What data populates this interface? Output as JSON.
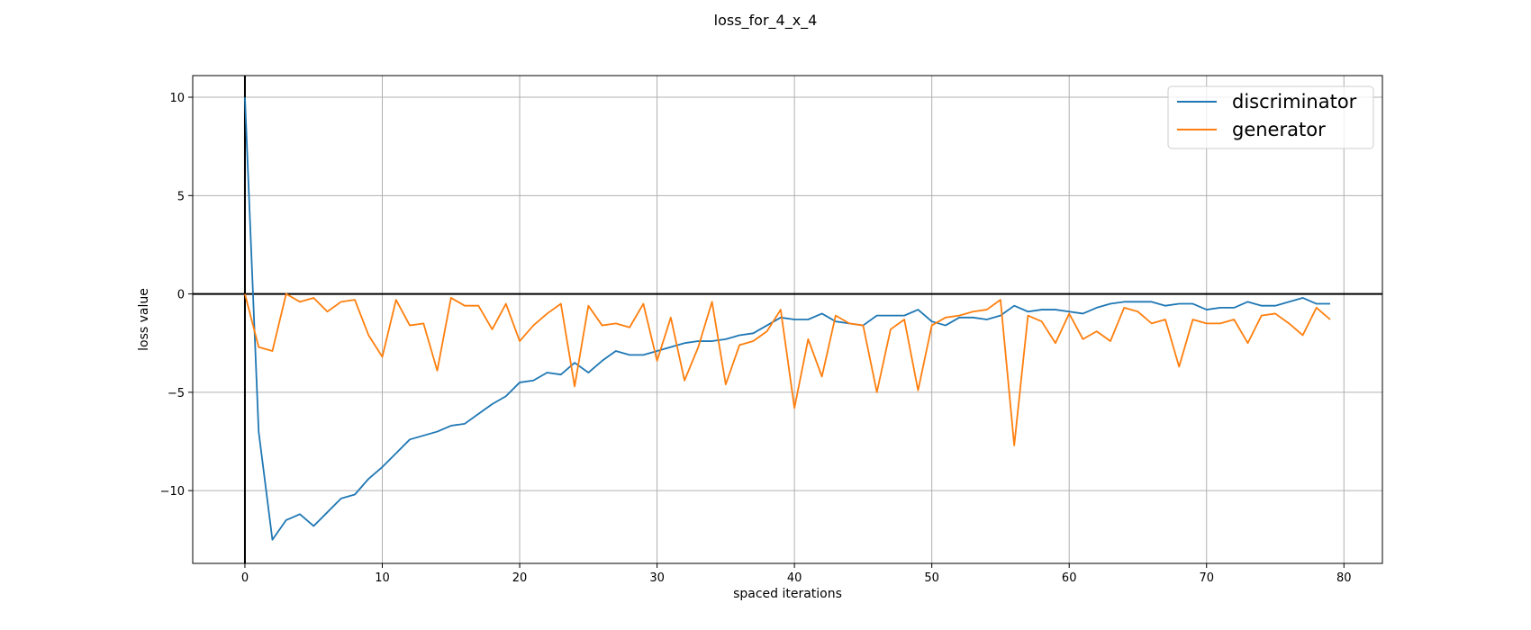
{
  "chart_data": {
    "type": "line",
    "title": "loss_for_4_x_4",
    "xlabel": "spaced iterations",
    "ylabel": "loss value",
    "xlim": [
      -3.8,
      82.8
    ],
    "ylim": [
      -13.7,
      11.1
    ],
    "xticks": [
      0,
      10,
      20,
      30,
      40,
      50,
      60,
      70,
      80
    ],
    "yticks": [
      10,
      5,
      0,
      -5,
      -10
    ],
    "ytick_labels": [
      "10",
      "5",
      "0",
      "−5",
      "−10"
    ],
    "grid": true,
    "legend_position": "top-right",
    "series": [
      {
        "name": "discriminator",
        "color": "#1f77b4",
        "values": [
          10.0,
          -7.0,
          -12.5,
          -11.5,
          -11.2,
          -11.8,
          -11.1,
          -10.4,
          -10.2,
          -9.4,
          -8.8,
          -8.1,
          -7.4,
          -7.2,
          -7.0,
          -6.7,
          -6.6,
          -6.1,
          -5.6,
          -5.2,
          -4.5,
          -4.4,
          -4.0,
          -4.1,
          -3.5,
          -4.0,
          -3.4,
          -2.9,
          -3.1,
          -3.1,
          -2.9,
          -2.7,
          -2.5,
          -2.4,
          -2.4,
          -2.3,
          -2.1,
          -2.0,
          -1.6,
          -1.2,
          -1.3,
          -1.3,
          -1.0,
          -1.4,
          -1.5,
          -1.6,
          -1.1,
          -1.1,
          -1.1,
          -0.8,
          -1.4,
          -1.6,
          -1.2,
          -1.2,
          -1.3,
          -1.1,
          -0.6,
          -0.9,
          -0.8,
          -0.8,
          -0.9,
          -1.0,
          -0.7,
          -0.5,
          -0.4,
          -0.4,
          -0.4,
          -0.6,
          -0.5,
          -0.5,
          -0.8,
          -0.7,
          -0.7,
          -0.4,
          -0.6,
          -0.6,
          -0.4,
          -0.2,
          -0.5,
          -0.5
        ]
      },
      {
        "name": "generator",
        "color": "#ff7f0e",
        "values": [
          0.0,
          -2.7,
          -2.9,
          0.0,
          -0.4,
          -0.2,
          -0.9,
          -0.4,
          -0.3,
          -2.1,
          -3.2,
          -0.3,
          -1.6,
          -1.5,
          -3.9,
          -0.2,
          -0.6,
          -0.6,
          -1.8,
          -0.5,
          -2.4,
          -1.6,
          -1.0,
          -0.5,
          -4.7,
          -0.6,
          -1.6,
          -1.5,
          -1.7,
          -0.5,
          -3.4,
          -1.2,
          -4.4,
          -2.7,
          -0.4,
          -4.6,
          -2.6,
          -2.4,
          -1.9,
          -0.8,
          -5.8,
          -2.3,
          -4.2,
          -1.1,
          -1.5,
          -1.6,
          -5.0,
          -1.8,
          -1.3,
          -4.9,
          -1.6,
          -1.2,
          -1.1,
          -0.9,
          -0.8,
          -0.3,
          -7.7,
          -1.1,
          -1.4,
          -2.5,
          -1.0,
          -2.3,
          -1.9,
          -2.4,
          -0.7,
          -0.9,
          -1.5,
          -1.3,
          -3.7,
          -1.3,
          -1.5,
          -1.5,
          -1.3,
          -2.5,
          -1.1,
          -1.0,
          -1.5,
          -2.1,
          -0.7,
          -1.3
        ]
      }
    ]
  }
}
